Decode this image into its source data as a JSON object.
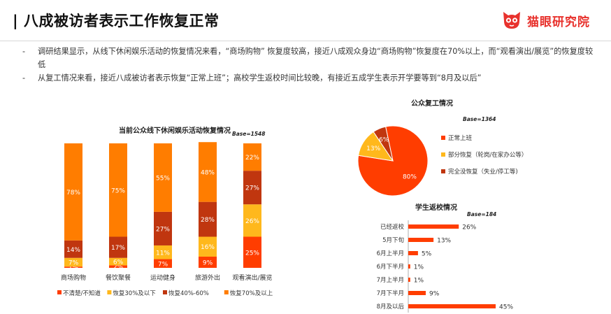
{
  "header": {
    "title": "| 八成被访者表示工作恢复正常",
    "brand": "猫眼研究院",
    "brand_color": "#e8322d",
    "logo_icon": "cat-face-icon"
  },
  "bullets": [
    "调研结果显示，从线下休闲娱乐活动的恢复情况来看，“商场购物” 恢复度较高，接近八成观众身边“商场购物”恢复度在70%以上，而“观看演出/展览”的恢复度较低",
    "从复工情况来看，接近八成被访者表示恢复“正常上班”；高校学生返校时间比较晚，有接近五成学生表示开学要等到“8月及以后”"
  ],
  "chart_data": [
    {
      "type": "bar",
      "stacked": true,
      "title": "当前公众线下休闲娱乐活动恢复情况",
      "base_label": "Base=1548",
      "categories": [
        "商场购物",
        "餐饮聚餐",
        "运动健身",
        "旅游外出",
        "观看演出/展览"
      ],
      "series": [
        {
          "name": "不清楚/不知道",
          "color": "#ff3d00",
          "values": [
            1,
            2,
            7,
            9,
            25
          ],
          "labels": [
            "1%",
            "2%",
            "7%",
            "9%",
            "25%"
          ]
        },
        {
          "name": "恢复30%及以下",
          "color": "#ffb81c",
          "values": [
            7,
            6,
            11,
            16,
            26
          ],
          "labels": [
            "7%",
            "6%",
            "11%",
            "16%",
            "26%"
          ]
        },
        {
          "name": "恢复40%-60%",
          "color": "#c0360f",
          "values": [
            14,
            17,
            27,
            28,
            27
          ],
          "labels": [
            "14%",
            "17%",
            "27%",
            "28%",
            "27%"
          ]
        },
        {
          "name": "恢复70%及以上",
          "color": "#ff7d00",
          "values": [
            78,
            75,
            55,
            48,
            22
          ],
          "labels": [
            "78%",
            "75%",
            "55%",
            "48%",
            "22%"
          ]
        }
      ],
      "ylim": [
        0,
        100
      ],
      "legend": "bottom"
    },
    {
      "type": "pie",
      "title": "公众复工情况",
      "base_label": "Base=1364",
      "slices": [
        {
          "name": "正常上班",
          "value": 80,
          "label": "80%",
          "color": "#ff3d00"
        },
        {
          "name": "部分恢复（轮岗/在家办公等）",
          "value": 13,
          "label": "13%",
          "color": "#ffb81c"
        },
        {
          "name": "完全没恢复（失业/停工等)",
          "value": 6,
          "label": "6%",
          "color": "#c0360f"
        }
      ],
      "legend": "right"
    },
    {
      "type": "bar",
      "orientation": "horizontal",
      "title": "学生返校情况",
      "base_label": "Base=184",
      "color": "#ff3d00",
      "categories": [
        "已经返校",
        "5月下旬",
        "6月上半月",
        "6月下半月",
        "7月上半月",
        "7月下半月",
        "8月及以后"
      ],
      "values": [
        26,
        13,
        5,
        1,
        1,
        9,
        45
      ],
      "labels": [
        "26%",
        "13%",
        "5%",
        "1%",
        "1%",
        "9%",
        "45%"
      ]
    }
  ]
}
